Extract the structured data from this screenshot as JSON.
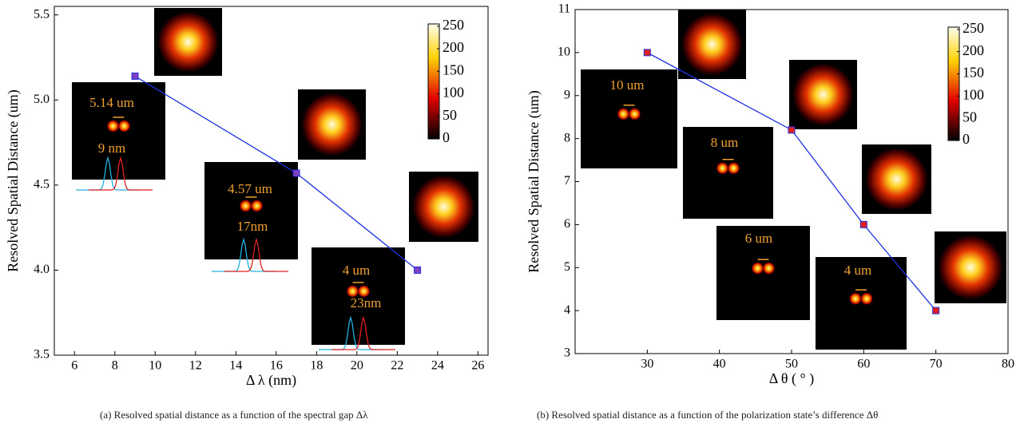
{
  "chart_data": [
    {
      "type": "line",
      "xlabel": "Δ λ (nm)",
      "ylabel": "Resolved Spatial Distance (um)",
      "x": [
        9,
        17,
        23
      ],
      "series": [
        {
          "color": "#2030e0",
          "marker_color": "#8040c0",
          "values": [
            5.14,
            4.57,
            4.0
          ]
        }
      ],
      "xlim": [
        5,
        26.5
      ],
      "xticks": [
        6,
        8,
        10,
        12,
        14,
        16,
        18,
        20,
        22,
        24,
        26
      ],
      "ylim": [
        3.5,
        5.55
      ],
      "yticks": [
        3.5,
        {
          "value": 4,
          "label": "4.0"
        },
        4.5,
        {
          "value": 5,
          "label": "5.0"
        },
        5.5
      ],
      "colorbar": {
        "lim": [
          0,
          255
        ],
        "ticks": [
          0,
          50,
          100,
          150,
          200,
          250
        ]
      },
      "annotations": [
        "5.14 um",
        "9 nm",
        "4.57 um",
        "17nm",
        "4 um",
        "23nm"
      ],
      "caption": "(a)   Resolved spatial distance as a function of the spectral gap Δλ"
    },
    {
      "type": "line",
      "xlabel": "Δ θ ( ° )",
      "ylabel": "Resolved Spatial Distance (um)",
      "x": [
        30,
        50,
        60,
        70
      ],
      "series": [
        {
          "color": "#2030e0",
          "marker_color": "#e02020",
          "values": [
            10,
            8.2,
            6,
            4
          ]
        }
      ],
      "xlim": [
        20,
        80
      ],
      "xticks": [
        30,
        40,
        50,
        60,
        70,
        80
      ],
      "ylim": [
        3,
        11
      ],
      "yticks": [
        3,
        4,
        5,
        6,
        7,
        8,
        9,
        10,
        11
      ],
      "colorbar": {
        "lim": [
          0,
          255
        ],
        "ticks": [
          0,
          50,
          100,
          150,
          200,
          250
        ]
      },
      "annotations": [
        "10 um",
        "8 um",
        "6 um",
        "4 um"
      ],
      "caption": "(b)   Resolved spatial distance as a function of the polarization state’s difference Δθ"
    }
  ]
}
